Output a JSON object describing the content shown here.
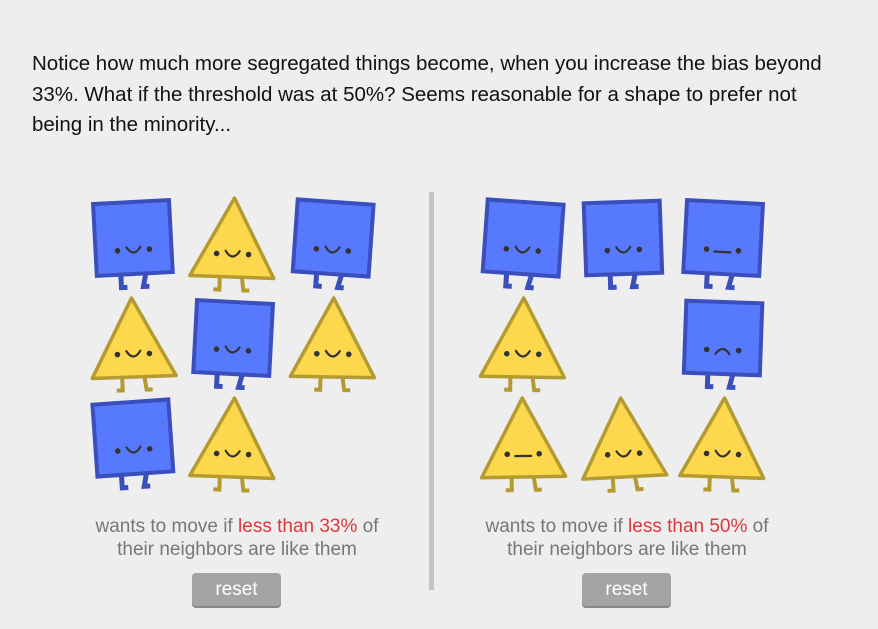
{
  "intro_text": "Notice how much more segregated things become, when you increase the bias beyond 33%. What if the threshold was at 50%? Seems reasonable for a shape to prefer not being in the minority...",
  "colors": {
    "square_fill": "#5779fd",
    "square_stroke": "#3a4fbc",
    "triangle_fill": "#fdd74c",
    "triangle_stroke": "#b49a32",
    "highlight": "#e0363b",
    "background": "#eeeeee"
  },
  "panels": [
    {
      "threshold": "33%",
      "caption_prefix": "wants to move if ",
      "caption_highlight": "less than 33%",
      "caption_suffix": " of",
      "caption_line2": "their neighbors are like them",
      "reset_label": "reset",
      "grid": [
        [
          "square",
          "triangle",
          "square"
        ],
        [
          "triangle",
          "square",
          "triangle"
        ],
        [
          "square",
          "triangle",
          ""
        ]
      ],
      "moods": [
        [
          "happy",
          "happy",
          "happy"
        ],
        [
          "happy",
          "happy",
          "happy"
        ],
        [
          "happy",
          "happy",
          ""
        ]
      ]
    },
    {
      "threshold": "50%",
      "caption_prefix": "wants to move if ",
      "caption_highlight": "less than 50%",
      "caption_suffix": " of",
      "caption_line2": "their neighbors are like them",
      "reset_label": "reset",
      "grid": [
        [
          "square",
          "square",
          "square"
        ],
        [
          "triangle",
          "",
          "square"
        ],
        [
          "triangle",
          "triangle",
          "triangle"
        ]
      ],
      "moods": [
        [
          "happy",
          "happy",
          "meh"
        ],
        [
          "happy",
          "",
          "unhappy"
        ],
        [
          "meh",
          "happy",
          "happy"
        ]
      ]
    }
  ]
}
